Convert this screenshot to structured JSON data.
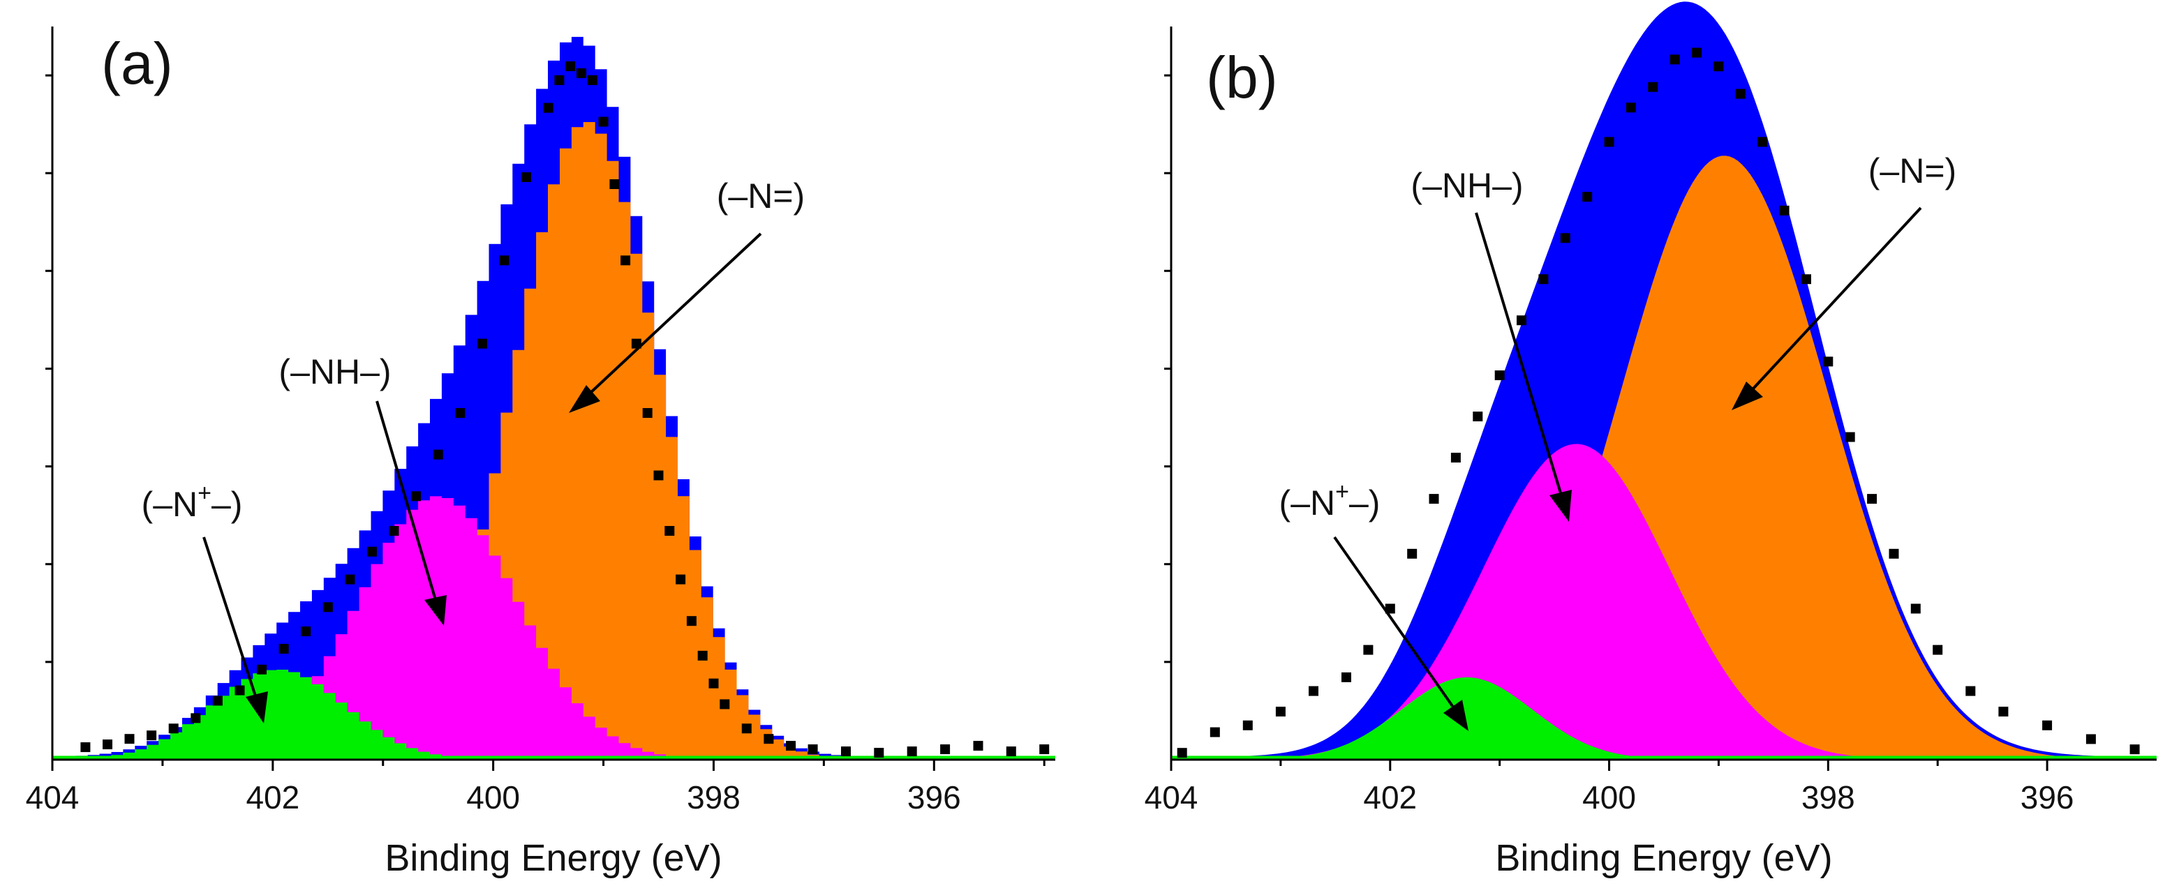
{
  "colors": {
    "background": "#ffffff",
    "axis": "#000000",
    "envelope": "#0000ff",
    "n_equal": "#ff8000",
    "nh": "#ff00ff",
    "n_plus": "#00ee00",
    "markers": "#000000"
  },
  "chart_data": [
    {
      "panel_label": "(a)",
      "type": "area",
      "xlabel": "Binding Energy (eV)",
      "ylabel": "",
      "x_reversed": true,
      "xlim": [
        404,
        394.9
      ],
      "ylim": [
        0,
        1.0
      ],
      "x_ticks": [
        "404",
        "402",
        "400",
        "398",
        "396"
      ],
      "x_tick_values": [
        404,
        402,
        400,
        398,
        396
      ],
      "peaks": [
        {
          "name": "(–N=)",
          "center": 399.15,
          "height": 0.92,
          "sigma": 0.66,
          "color": "#ff8000"
        },
        {
          "name": "(–NH–)",
          "center": 400.5,
          "height": 0.38,
          "sigma": 0.72,
          "color": "#ff00ff"
        },
        {
          "name": "(–N⁺–)",
          "center": 401.95,
          "height": 0.13,
          "sigma": 0.6,
          "color": "#00ee00"
        }
      ],
      "annotations": [
        {
          "text": "(–N=)",
          "target": "n_equal"
        },
        {
          "text": "(–NH–)",
          "target": "nh"
        },
        {
          "text": "(–N",
          "sup": "+",
          "after": "–)",
          "target": "n_plus"
        }
      ],
      "scatter_x": [
        403.7,
        403.5,
        403.3,
        403.1,
        402.9,
        402.7,
        402.5,
        402.3,
        402.1,
        401.9,
        401.7,
        401.5,
        401.3,
        401.1,
        400.9,
        400.7,
        400.5,
        400.3,
        400.1,
        399.9,
        399.7,
        399.5,
        399.4,
        399.3,
        399.2,
        399.1,
        399.0,
        398.9,
        398.8,
        398.7,
        398.6,
        398.5,
        398.4,
        398.3,
        398.2,
        398.1,
        398.0,
        397.9,
        397.7,
        397.5,
        397.3,
        397.1,
        396.8,
        396.5,
        396.2,
        395.9,
        395.6,
        395.3,
        395.0
      ],
      "scatter_y": [
        0.018,
        0.022,
        0.03,
        0.035,
        0.045,
        0.06,
        0.085,
        0.1,
        0.13,
        0.16,
        0.185,
        0.22,
        0.26,
        0.3,
        0.33,
        0.38,
        0.44,
        0.5,
        0.6,
        0.72,
        0.84,
        0.94,
        0.98,
        1.0,
        0.99,
        0.98,
        0.92,
        0.83,
        0.72,
        0.6,
        0.5,
        0.41,
        0.33,
        0.26,
        0.2,
        0.15,
        0.11,
        0.08,
        0.045,
        0.03,
        0.02,
        0.015,
        0.012,
        0.01,
        0.012,
        0.015,
        0.02,
        0.012,
        0.015
      ]
    },
    {
      "panel_label": "(b)",
      "type": "area",
      "xlabel": "Binding Energy (eV)",
      "ylabel": "",
      "x_reversed": true,
      "xlim": [
        404,
        395
      ],
      "ylim": [
        0,
        1.0
      ],
      "x_ticks": [
        "404",
        "402",
        "400",
        "398",
        "396"
      ],
      "x_tick_values": [
        404,
        402,
        400,
        398,
        396
      ],
      "peaks": [
        {
          "name": "(–N=)",
          "center": 398.95,
          "height": 0.88,
          "sigma": 0.95,
          "color": "#ff8000"
        },
        {
          "name": "(–NH–)",
          "center": 400.3,
          "height": 0.46,
          "sigma": 0.85,
          "color": "#ff00ff"
        },
        {
          "name": "(–N⁺–)",
          "center": 401.3,
          "height": 0.12,
          "sigma": 0.6,
          "color": "#00ee00"
        }
      ],
      "annotations": [
        {
          "text": "(–N=)",
          "target": "n_equal"
        },
        {
          "text": "(–NH–)",
          "target": "nh"
        },
        {
          "text": "(–N",
          "sup": "+",
          "after": "–)",
          "target": "n_plus"
        }
      ],
      "scatter_x": [
        403.9,
        403.6,
        403.3,
        403.0,
        402.7,
        402.4,
        402.2,
        402.0,
        401.8,
        401.6,
        401.4,
        401.2,
        401.0,
        400.8,
        400.6,
        400.4,
        400.2,
        400.0,
        399.8,
        399.6,
        399.4,
        399.2,
        399.0,
        398.8,
        398.6,
        398.4,
        398.2,
        398.0,
        397.8,
        397.6,
        397.4,
        397.2,
        397.0,
        396.7,
        396.4,
        396.0,
        395.6,
        395.2
      ],
      "scatter_y": [
        0.01,
        0.04,
        0.05,
        0.07,
        0.1,
        0.12,
        0.16,
        0.22,
        0.3,
        0.38,
        0.44,
        0.5,
        0.56,
        0.64,
        0.7,
        0.76,
        0.82,
        0.9,
        0.95,
        0.98,
        1.02,
        1.03,
        1.01,
        0.97,
        0.9,
        0.8,
        0.7,
        0.58,
        0.47,
        0.38,
        0.3,
        0.22,
        0.16,
        0.1,
        0.07,
        0.05,
        0.03,
        0.015
      ]
    }
  ]
}
